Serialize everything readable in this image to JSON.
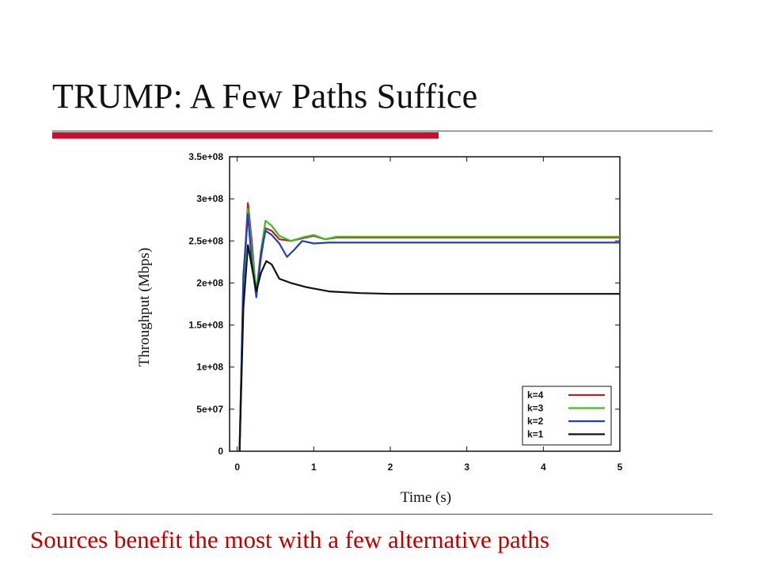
{
  "slide": {
    "title": "TRUMP: A Few Paths Suffice",
    "caption": "Sources benefit the most with a few alternative paths",
    "accent_color": "#c8102e",
    "caption_color": "#c00000"
  },
  "chart_data": {
    "type": "line",
    "title": "",
    "xlabel": "Time (s)",
    "ylabel": "Throughput (Mbps)",
    "xlim": [
      -0.1,
      5
    ],
    "ylim": [
      0,
      350000000
    ],
    "x_ticks": [
      "0",
      "1",
      "2",
      "3",
      "4",
      "5"
    ],
    "x_tick_values": [
      0,
      1,
      2,
      3,
      4,
      5
    ],
    "y_ticks": [
      "0",
      "5e+07",
      "1e+08",
      "1.5e+08",
      "2e+08",
      "2.5e+08",
      "3e+08",
      "3.5e+08"
    ],
    "y_tick_values": [
      0,
      50000000,
      100000000,
      150000000,
      200000000,
      250000000,
      300000000,
      350000000
    ],
    "legend_position": "bottom-right",
    "grid": false,
    "series": [
      {
        "name": "k=4",
        "color": "#b22222",
        "points": [
          [
            0.03,
            0
          ],
          [
            0.08,
            200000000
          ],
          [
            0.14,
            295000000
          ],
          [
            0.19,
            250000000
          ],
          [
            0.25,
            185000000
          ],
          [
            0.31,
            230000000
          ],
          [
            0.37,
            265000000
          ],
          [
            0.45,
            262000000
          ],
          [
            0.55,
            252000000
          ],
          [
            0.7,
            250000000
          ],
          [
            0.85,
            253000000
          ],
          [
            1.0,
            256000000
          ],
          [
            1.15,
            252000000
          ],
          [
            1.3,
            254000000
          ],
          [
            1.6,
            254000000
          ],
          [
            2.0,
            254000000
          ],
          [
            3.0,
            254000000
          ],
          [
            5.0,
            254000000
          ]
        ]
      },
      {
        "name": "k=3",
        "color": "#44bb22",
        "points": [
          [
            0.03,
            0
          ],
          [
            0.08,
            190000000
          ],
          [
            0.14,
            288000000
          ],
          [
            0.19,
            240000000
          ],
          [
            0.25,
            190000000
          ],
          [
            0.31,
            238000000
          ],
          [
            0.37,
            274000000
          ],
          [
            0.45,
            268000000
          ],
          [
            0.55,
            256000000
          ],
          [
            0.7,
            250000000
          ],
          [
            0.85,
            254000000
          ],
          [
            1.0,
            257000000
          ],
          [
            1.15,
            252000000
          ],
          [
            1.3,
            255000000
          ],
          [
            1.6,
            255000000
          ],
          [
            2.0,
            255000000
          ],
          [
            3.0,
            255000000
          ],
          [
            5.0,
            255000000
          ]
        ]
      },
      {
        "name": "k=2",
        "color": "#1f3fbf",
        "points": [
          [
            0.03,
            0
          ],
          [
            0.08,
            210000000
          ],
          [
            0.14,
            282000000
          ],
          [
            0.19,
            225000000
          ],
          [
            0.25,
            183000000
          ],
          [
            0.31,
            235000000
          ],
          [
            0.37,
            262000000
          ],
          [
            0.45,
            257000000
          ],
          [
            0.55,
            247000000
          ],
          [
            0.65,
            231000000
          ],
          [
            0.75,
            240000000
          ],
          [
            0.85,
            250000000
          ],
          [
            1.0,
            247000000
          ],
          [
            1.2,
            248000000
          ],
          [
            2.0,
            248000000
          ],
          [
            3.0,
            248000000
          ],
          [
            5.0,
            248000000
          ]
        ]
      },
      {
        "name": "k=1",
        "color": "#111111",
        "points": [
          [
            0.03,
            0
          ],
          [
            0.08,
            170000000
          ],
          [
            0.14,
            245000000
          ],
          [
            0.19,
            220000000
          ],
          [
            0.25,
            190000000
          ],
          [
            0.31,
            212000000
          ],
          [
            0.38,
            226000000
          ],
          [
            0.45,
            222000000
          ],
          [
            0.55,
            205000000
          ],
          [
            0.7,
            200000000
          ],
          [
            0.9,
            195000000
          ],
          [
            1.2,
            190000000
          ],
          [
            1.6,
            188000000
          ],
          [
            2.0,
            187000000
          ],
          [
            3.0,
            187000000
          ],
          [
            5.0,
            187000000
          ]
        ]
      }
    ]
  }
}
